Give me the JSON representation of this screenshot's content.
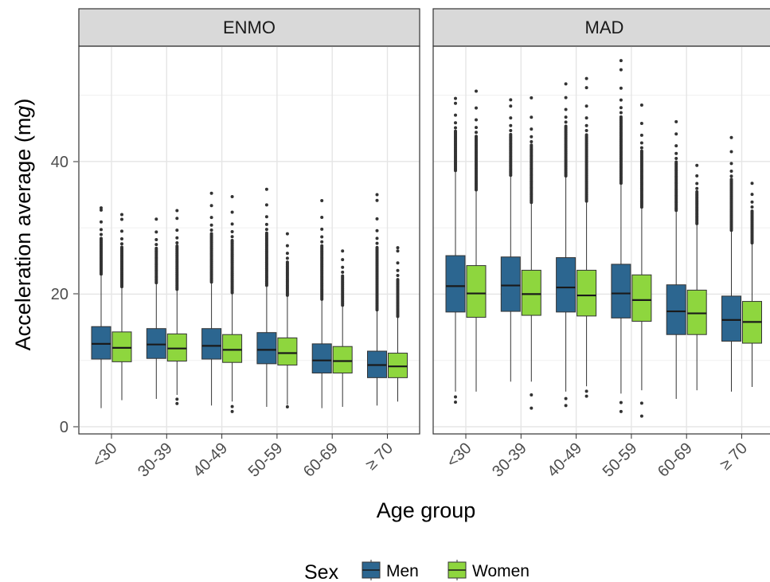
{
  "chart_data": {
    "type": "boxplot",
    "facet_labels": [
      "ENMO",
      "MAD"
    ],
    "categories": [
      "<30",
      "30-39",
      "40-49",
      "50-59",
      "60-69",
      "≥ 70"
    ],
    "xlabel": "Age group",
    "ylabel_main": "Acceleration average (m",
    "ylabel_unit": "g",
    "ylabel_close": ")",
    "y_ticks": [
      "0",
      "20",
      "40"
    ],
    "ylim": [
      -0.5,
      58
    ],
    "legend": {
      "title": "Sex",
      "position": "bottom",
      "entries": [
        "Men",
        "Women"
      ]
    },
    "grid": true,
    "colors": {
      "Men": "#2c6690",
      "Women": "#8ed63e"
    },
    "panels": [
      {
        "name": "ENMO",
        "series": [
          {
            "name": "Men",
            "boxes": [
              {
                "category": "<30",
                "min": 2.8,
                "q1": 10.2,
                "median": 12.5,
                "q3": 15.1,
                "max": 22.9,
                "outlier_top": 33.0,
                "outlier_bottom": null
              },
              {
                "category": "30-39",
                "min": 4.2,
                "q1": 10.3,
                "median": 12.4,
                "q3": 14.8,
                "max": 21.6,
                "outlier_top": 31.3,
                "outlier_bottom": null
              },
              {
                "category": "40-49",
                "min": 3.2,
                "q1": 10.2,
                "median": 12.2,
                "q3": 14.8,
                "max": 21.7,
                "outlier_top": 35.2,
                "outlier_bottom": null
              },
              {
                "category": "50-59",
                "min": 3.0,
                "q1": 9.5,
                "median": 11.6,
                "q3": 14.2,
                "max": 21.2,
                "outlier_top": 35.8,
                "outlier_bottom": null
              },
              {
                "category": "60-69",
                "min": 2.8,
                "q1": 8.1,
                "median": 10.0,
                "q3": 12.5,
                "max": 19.1,
                "outlier_top": 34.1,
                "outlier_bottom": null
              },
              {
                "category": "≥ 70",
                "min": 3.2,
                "q1": 7.4,
                "median": 9.3,
                "q3": 11.4,
                "max": 17.5,
                "outlier_top": 35.0,
                "outlier_bottom": null
              }
            ]
          },
          {
            "name": "Women",
            "boxes": [
              {
                "category": "<30",
                "min": 4.0,
                "q1": 9.8,
                "median": 11.9,
                "q3": 14.3,
                "max": 21.0,
                "outlier_top": 32.0,
                "outlier_bottom": null
              },
              {
                "category": "30-39",
                "min": 4.8,
                "q1": 9.9,
                "median": 11.8,
                "q3": 14.0,
                "max": 20.6,
                "outlier_top": 32.6,
                "outlier_bottom": 3.5
              },
              {
                "category": "40-49",
                "min": 3.8,
                "q1": 9.7,
                "median": 11.6,
                "q3": 13.9,
                "max": 20.1,
                "outlier_top": 34.7,
                "outlier_bottom": 2.3
              },
              {
                "category": "50-59",
                "min": 3.3,
                "q1": 9.3,
                "median": 11.1,
                "q3": 13.4,
                "max": 19.7,
                "outlier_top": 29.1,
                "outlier_bottom": 3.0
              },
              {
                "category": "60-69",
                "min": 3.0,
                "q1": 8.1,
                "median": 9.9,
                "q3": 12.1,
                "max": 18.2,
                "outlier_top": 26.5,
                "outlier_bottom": null
              },
              {
                "category": "≥ 70",
                "min": 3.8,
                "q1": 7.4,
                "median": 9.1,
                "q3": 11.1,
                "max": 16.5,
                "outlier_top": 27.0,
                "outlier_bottom": null
              }
            ]
          }
        ]
      },
      {
        "name": "MAD",
        "series": [
          {
            "name": "Men",
            "boxes": [
              {
                "category": "<30",
                "min": 5.3,
                "q1": 17.3,
                "median": 21.2,
                "q3": 25.8,
                "max": 38.5,
                "outlier_top": 49.5,
                "outlier_bottom": 3.7
              },
              {
                "category": "30-39",
                "min": 6.8,
                "q1": 17.4,
                "median": 21.3,
                "q3": 25.6,
                "max": 37.8,
                "outlier_top": 49.3,
                "outlier_bottom": null
              },
              {
                "category": "40-49",
                "min": 5.3,
                "q1": 17.3,
                "median": 21.0,
                "q3": 25.5,
                "max": 37.7,
                "outlier_top": 51.7,
                "outlier_bottom": 3.2
              },
              {
                "category": "50-59",
                "min": 5.0,
                "q1": 16.4,
                "median": 20.1,
                "q3": 24.5,
                "max": 36.6,
                "outlier_top": 55.2,
                "outlier_bottom": 2.3
              },
              {
                "category": "60-69",
                "min": 4.2,
                "q1": 13.9,
                "median": 17.4,
                "q3": 21.4,
                "max": 32.5,
                "outlier_top": 46.0,
                "outlier_bottom": null
              },
              {
                "category": "≥ 70",
                "min": 5.3,
                "q1": 12.9,
                "median": 16.1,
                "q3": 19.7,
                "max": 29.5,
                "outlier_top": 43.6,
                "outlier_bottom": null
              }
            ]
          },
          {
            "name": "Women",
            "boxes": [
              {
                "category": "<30",
                "min": 5.3,
                "q1": 16.5,
                "median": 20.1,
                "q3": 24.3,
                "max": 35.6,
                "outlier_top": 50.6,
                "outlier_bottom": null
              },
              {
                "category": "30-39",
                "min": 6.8,
                "q1": 16.8,
                "median": 20.0,
                "q3": 23.6,
                "max": 33.7,
                "outlier_top": 49.6,
                "outlier_bottom": 2.8
              },
              {
                "category": "40-49",
                "min": 6.1,
                "q1": 16.7,
                "median": 19.8,
                "q3": 23.6,
                "max": 33.9,
                "outlier_top": 52.5,
                "outlier_bottom": 4.6
              },
              {
                "category": "50-59",
                "min": 5.5,
                "q1": 15.9,
                "median": 19.1,
                "q3": 22.9,
                "max": 33.0,
                "outlier_top": 48.5,
                "outlier_bottom": 1.6
              },
              {
                "category": "60-69",
                "min": 5.5,
                "q1": 13.9,
                "median": 17.1,
                "q3": 20.6,
                "max": 30.5,
                "outlier_top": 39.4,
                "outlier_bottom": null
              },
              {
                "category": "≥ 70",
                "min": 6.0,
                "q1": 12.6,
                "median": 15.8,
                "q3": 18.9,
                "max": 27.6,
                "outlier_top": 36.7,
                "outlier_bottom": null
              }
            ]
          }
        ]
      }
    ]
  }
}
